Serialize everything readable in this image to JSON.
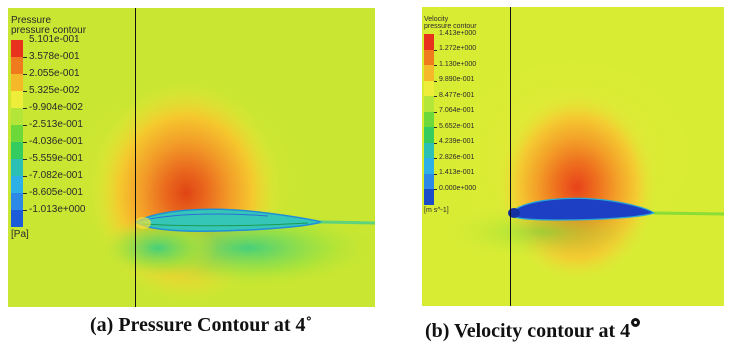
{
  "panel_a": {
    "legend": {
      "title": "Pressure",
      "subtitle": "pressure contour",
      "values": [
        "5.101e-001",
        "3.578e-001",
        "2.055e-001",
        "5.325e-002",
        "-9.904e-002",
        "-2.513e-001",
        "-4.036e-001",
        "-5.559e-001",
        "-7.082e-001",
        "-8.605e-001",
        "-1.013e+000"
      ],
      "unit": "[Pa]",
      "colors": [
        "#e8321e",
        "#f07a1e",
        "#f5b828",
        "#eded3a",
        "#b4e63a",
        "#6cd83a",
        "#34cc5e",
        "#2cc0b4",
        "#2cb0e6",
        "#2c8ae6",
        "#1c5cd8"
      ]
    },
    "caption": "(a) Pressure Contour at 4˚"
  },
  "panel_b": {
    "legend": {
      "title": "Velocity",
      "subtitle": "pressure contour",
      "values": [
        "1.413e+000",
        "1.272e+000",
        "1.130e+000",
        "9.890e-001",
        "8.477e-001",
        "7.064e-001",
        "5.652e-001",
        "4.239e-001",
        "2.826e-001",
        "1.413e-001",
        "0.000e+000"
      ],
      "unit": "[m s^-1]",
      "colors": [
        "#e8321e",
        "#f07a1e",
        "#f5b828",
        "#eded3a",
        "#b4e63a",
        "#6cd83a",
        "#34cc5e",
        "#2cc0b4",
        "#2cb0e6",
        "#2c8ae6",
        "#1c4cc8"
      ]
    },
    "caption_text": "(b) Velocity contour at 4"
  },
  "colors": {
    "background_field": "#c8e632",
    "free_stream": "#d9ec34"
  }
}
